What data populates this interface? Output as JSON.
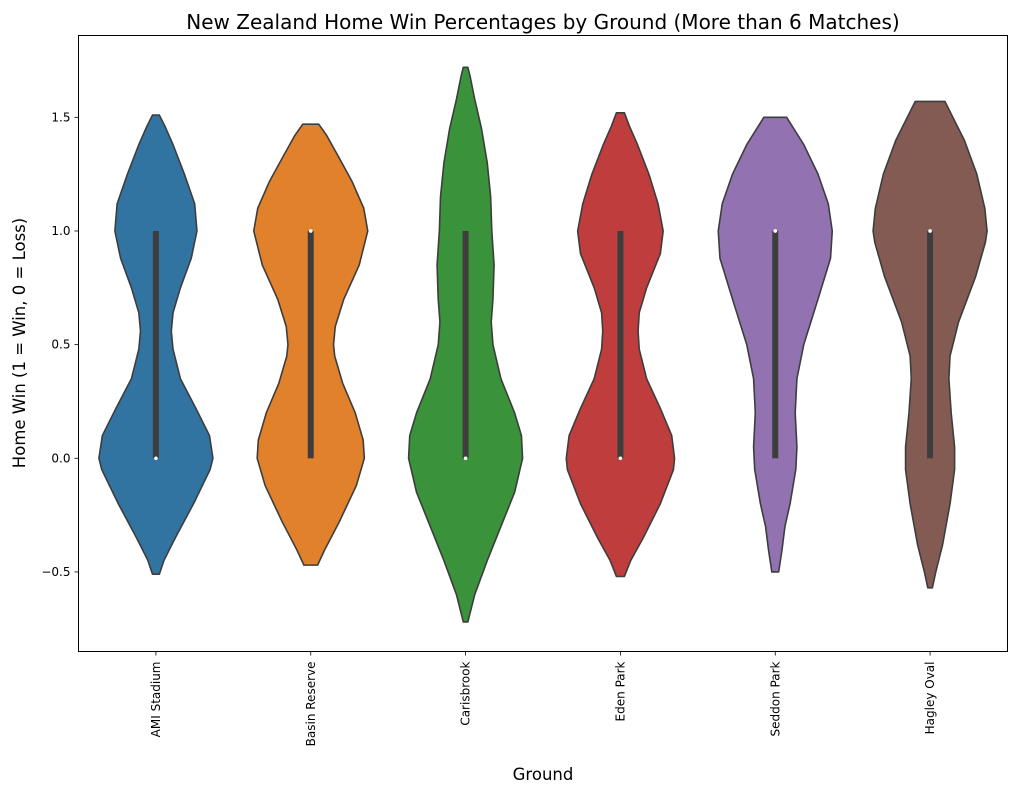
{
  "chart_data": {
    "type": "violin",
    "title": "New Zealand Home Win Percentages by Ground (More than 6 Matches)",
    "xlabel": "Ground",
    "ylabel": "Home Win (1 = Win, 0 = Loss)",
    "ylim": [
      -0.85,
      1.86
    ],
    "yticks": [
      -0.5,
      0.0,
      0.5,
      1.0,
      1.5
    ],
    "ytick_labels": [
      "−0.5",
      "0.0",
      "0.5",
      "1.0",
      "1.5"
    ],
    "grid": false,
    "categories": [
      "AMI Stadium",
      "Basin Reserve",
      "Carisbrook",
      "Eden Park",
      "Seddon Park",
      "Hagley Oval"
    ],
    "series": [
      {
        "color": "#3274a1",
        "range": [
          -0.51,
          1.51
        ],
        "quartiles": [
          0.0,
          1.0
        ],
        "median": 0.0,
        "profile": [
          [
            -0.51,
            0.06
          ],
          [
            -0.45,
            0.14
          ],
          [
            -0.35,
            0.34
          ],
          [
            -0.2,
            0.66
          ],
          [
            -0.05,
            0.95
          ],
          [
            0.0,
            1.0
          ],
          [
            0.1,
            0.94
          ],
          [
            0.22,
            0.7
          ],
          [
            0.35,
            0.43
          ],
          [
            0.48,
            0.3
          ],
          [
            0.56,
            0.27
          ],
          [
            0.64,
            0.3
          ],
          [
            0.75,
            0.43
          ],
          [
            0.88,
            0.62
          ],
          [
            1.0,
            0.72
          ],
          [
            1.12,
            0.68
          ],
          [
            1.25,
            0.5
          ],
          [
            1.38,
            0.3
          ],
          [
            1.46,
            0.16
          ],
          [
            1.51,
            0.06
          ]
        ]
      },
      {
        "color": "#e1812c",
        "range": [
          -0.47,
          1.47
        ],
        "quartiles": [
          0.0,
          1.0
        ],
        "median": 1.0,
        "profile": [
          [
            -0.47,
            0.12
          ],
          [
            -0.4,
            0.25
          ],
          [
            -0.28,
            0.5
          ],
          [
            -0.12,
            0.8
          ],
          [
            0.0,
            0.94
          ],
          [
            0.08,
            0.92
          ],
          [
            0.2,
            0.78
          ],
          [
            0.33,
            0.56
          ],
          [
            0.45,
            0.42
          ],
          [
            0.5,
            0.4
          ],
          [
            0.58,
            0.43
          ],
          [
            0.7,
            0.58
          ],
          [
            0.85,
            0.85
          ],
          [
            1.0,
            1.0
          ],
          [
            1.1,
            0.93
          ],
          [
            1.22,
            0.72
          ],
          [
            1.33,
            0.48
          ],
          [
            1.42,
            0.28
          ],
          [
            1.47,
            0.14
          ]
        ]
      },
      {
        "color": "#3a923a",
        "range": [
          -0.72,
          1.72
        ],
        "quartiles": [
          0.0,
          1.0
        ],
        "median": 0.0,
        "profile": [
          [
            -0.72,
            0.04
          ],
          [
            -0.6,
            0.16
          ],
          [
            -0.45,
            0.38
          ],
          [
            -0.3,
            0.62
          ],
          [
            -0.15,
            0.86
          ],
          [
            0.0,
            1.0
          ],
          [
            0.1,
            0.98
          ],
          [
            0.2,
            0.86
          ],
          [
            0.35,
            0.62
          ],
          [
            0.5,
            0.48
          ],
          [
            0.6,
            0.45
          ],
          [
            0.7,
            0.48
          ],
          [
            0.85,
            0.5
          ],
          [
            1.0,
            0.46
          ],
          [
            1.15,
            0.44
          ],
          [
            1.3,
            0.38
          ],
          [
            1.45,
            0.28
          ],
          [
            1.58,
            0.16
          ],
          [
            1.68,
            0.08
          ],
          [
            1.72,
            0.04
          ]
        ]
      },
      {
        "color": "#c03d3e",
        "range": [
          -0.52,
          1.52
        ],
        "quartiles": [
          0.0,
          1.0
        ],
        "median": 0.0,
        "profile": [
          [
            -0.52,
            0.07
          ],
          [
            -0.45,
            0.18
          ],
          [
            -0.35,
            0.4
          ],
          [
            -0.2,
            0.7
          ],
          [
            -0.05,
            0.93
          ],
          [
            0.0,
            0.95
          ],
          [
            0.1,
            0.9
          ],
          [
            0.22,
            0.7
          ],
          [
            0.35,
            0.46
          ],
          [
            0.48,
            0.33
          ],
          [
            0.56,
            0.31
          ],
          [
            0.64,
            0.33
          ],
          [
            0.75,
            0.46
          ],
          [
            0.9,
            0.7
          ],
          [
            1.0,
            0.75
          ],
          [
            1.12,
            0.66
          ],
          [
            1.25,
            0.5
          ],
          [
            1.38,
            0.3
          ],
          [
            1.46,
            0.16
          ],
          [
            1.52,
            0.07
          ]
        ]
      },
      {
        "color": "#9372b2",
        "range": [
          -0.5,
          1.5
        ],
        "quartiles": [
          0.0,
          1.0
        ],
        "median": 1.0,
        "profile": [
          [
            -0.5,
            0.06
          ],
          [
            -0.4,
            0.12
          ],
          [
            -0.3,
            0.17
          ],
          [
            -0.2,
            0.26
          ],
          [
            -0.05,
            0.36
          ],
          [
            0.05,
            0.38
          ],
          [
            0.2,
            0.35
          ],
          [
            0.35,
            0.38
          ],
          [
            0.5,
            0.5
          ],
          [
            0.7,
            0.75
          ],
          [
            0.88,
            0.97
          ],
          [
            1.0,
            1.0
          ],
          [
            1.12,
            0.93
          ],
          [
            1.25,
            0.75
          ],
          [
            1.38,
            0.5
          ],
          [
            1.46,
            0.3
          ],
          [
            1.5,
            0.2
          ]
        ]
      },
      {
        "color": "#845b53",
        "range": [
          -0.57,
          1.57
        ],
        "quartiles": [
          0.0,
          1.0
        ],
        "median": 1.0,
        "profile": [
          [
            -0.57,
            0.04
          ],
          [
            -0.5,
            0.1
          ],
          [
            -0.38,
            0.22
          ],
          [
            -0.2,
            0.35
          ],
          [
            -0.05,
            0.43
          ],
          [
            0.05,
            0.43
          ],
          [
            0.2,
            0.37
          ],
          [
            0.35,
            0.33
          ],
          [
            0.45,
            0.35
          ],
          [
            0.6,
            0.5
          ],
          [
            0.8,
            0.8
          ],
          [
            0.95,
            0.97
          ],
          [
            1.0,
            1.0
          ],
          [
            1.1,
            0.96
          ],
          [
            1.25,
            0.82
          ],
          [
            1.4,
            0.6
          ],
          [
            1.5,
            0.4
          ],
          [
            1.57,
            0.26
          ]
        ]
      }
    ]
  }
}
